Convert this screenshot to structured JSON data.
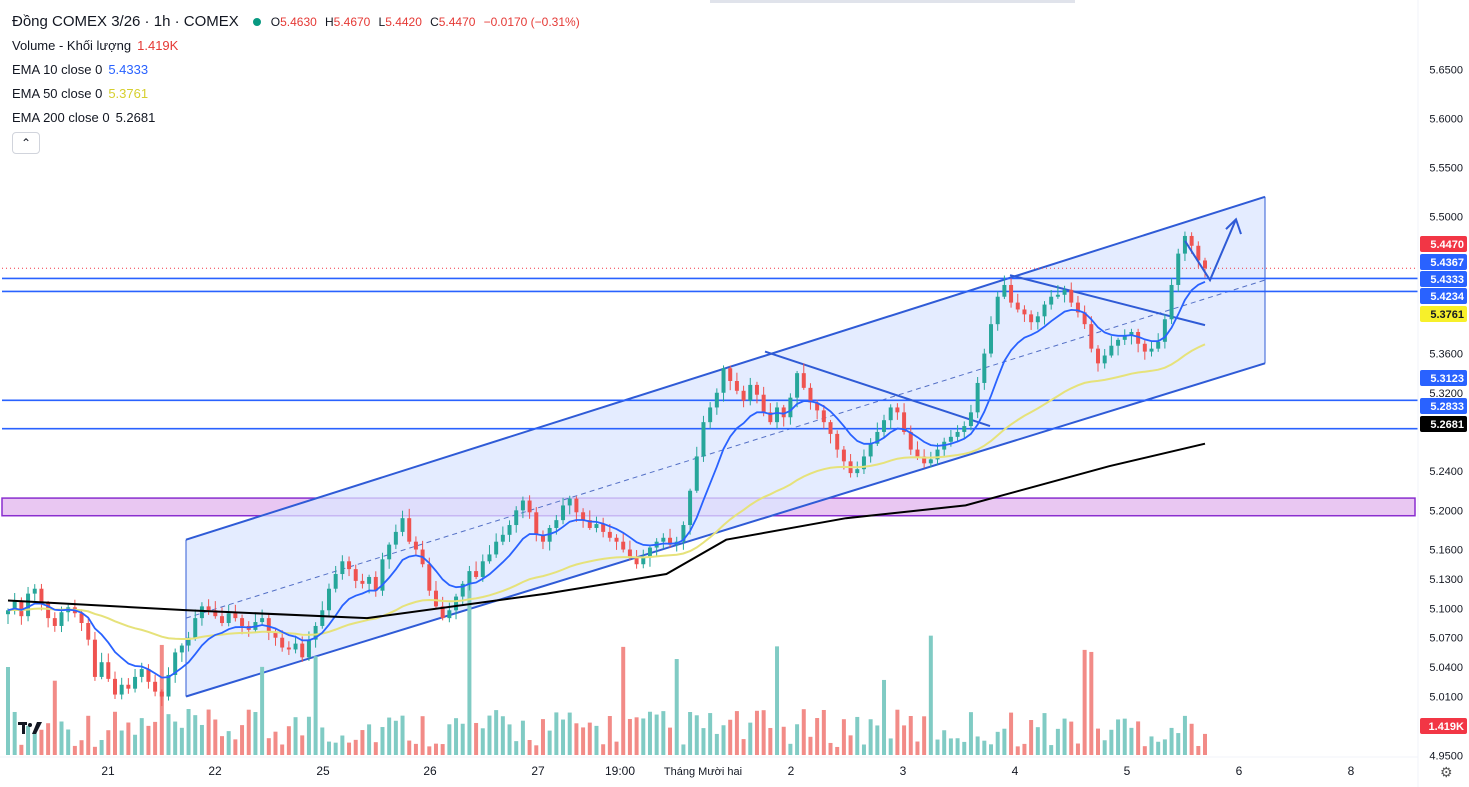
{
  "legend": {
    "title": "Đồng COMEX 3/26 · 1h · COMEX",
    "ohlc": {
      "o": "5.4630",
      "h": "5.4670",
      "l": "5.4420",
      "c": "5.4470",
      "chg": "−0.0170 (−0.31%)"
    },
    "volume_label": "Volume - Khối lượng",
    "volume_value": "1.419K",
    "ema10_label": "EMA 10 close 0",
    "ema10_value": "5.4333",
    "ema50_label": "EMA 50 close 0",
    "ema50_value": "5.3761",
    "ema200_label": "EMA 200 close 0",
    "ema200_value": "5.2681",
    "collapse_glyph": "⌃"
  },
  "colors": {
    "up": "#26a69a",
    "down": "#ef5350",
    "vol_up": "#80cbc4",
    "vol_down": "#f28b87",
    "ema10": "#2962ff",
    "ema50": "#e6e27a",
    "ema200": "#000000",
    "channel_stroke": "#2f5bd6",
    "channel_fill": "#dbe6ff",
    "zone_fill": "#e9c7f2",
    "zone_stroke": "#8a2ecf"
  },
  "chart_data": {
    "type": "candlestick",
    "y_range": [
      4.935,
      5.68
    ],
    "y_ticks": [
      "5.6500",
      "5.6000",
      "5.5500",
      "5.5000",
      "5.3600",
      "5.3200",
      "5.2400",
      "5.2000",
      "5.1600",
      "5.1300",
      "5.1000",
      "5.0700",
      "5.0400",
      "5.0100",
      "4.9500"
    ],
    "x_labels": [
      "21",
      "22",
      "25",
      "26",
      "27",
      "19:00",
      "Tháng Mười hai",
      "2",
      "3",
      "4",
      "5",
      "6",
      "8"
    ],
    "price_badges": [
      {
        "value": "5.4470",
        "bg": "#f23645",
        "fg": "#ffffff"
      },
      {
        "value": "5.4367",
        "bg": "#2962ff",
        "fg": "#ffffff"
      },
      {
        "value": "5.4333",
        "bg": "#2962ff",
        "fg": "#ffffff"
      },
      {
        "value": "5.4234",
        "bg": "#2962ff",
        "fg": "#ffffff"
      },
      {
        "value": "5.3761",
        "bg": "#f7f02a",
        "fg": "#131722"
      },
      {
        "value": "5.3123",
        "bg": "#2962ff",
        "fg": "#ffffff"
      },
      {
        "value": "5.2833",
        "bg": "#2962ff",
        "fg": "#ffffff"
      },
      {
        "value": "5.2681",
        "bg": "#000000",
        "fg": "#ffffff"
      },
      {
        "value": "1.419K",
        "bg": "#f23645",
        "fg": "#ffffff"
      }
    ],
    "horizontal_lines": [
      5.4367,
      5.4234,
      5.3123,
      5.2833
    ],
    "last_price": 5.447,
    "support_zone": [
      5.1945,
      5.2125
    ],
    "channel": {
      "upper": [
        [
          0.0,
          5.17
        ],
        [
          1.0,
          5.52
        ]
      ],
      "lower": [
        [
          0.0,
          5.01
        ],
        [
          1.0,
          5.35
        ]
      ]
    },
    "candles_close": [
      5.098,
      5.108,
      5.092,
      5.115,
      5.12,
      5.105,
      5.09,
      5.082,
      5.096,
      5.101,
      5.095,
      5.085,
      5.068,
      5.03,
      5.045,
      5.028,
      5.012,
      5.022,
      5.018,
      5.03,
      5.038,
      5.025,
      5.015,
      5.01,
      5.032,
      5.055,
      5.062,
      5.07,
      5.09,
      5.102,
      5.098,
      5.092,
      5.085,
      5.095,
      5.09,
      5.082,
      5.078,
      5.086,
      5.09,
      5.075,
      5.07,
      5.06,
      5.058,
      5.064,
      5.05,
      5.068,
      5.082,
      5.098,
      5.12,
      5.135,
      5.148,
      5.14,
      5.128,
      5.125,
      5.132,
      5.118,
      5.15,
      5.165,
      5.178,
      5.192,
      5.168,
      5.16,
      5.145,
      5.118,
      5.102,
      5.09,
      5.098,
      5.112,
      5.125,
      5.138,
      5.132,
      5.148,
      5.155,
      5.168,
      5.175,
      5.185,
      5.2,
      5.21,
      5.198,
      5.175,
      5.168,
      5.182,
      5.19,
      5.205,
      5.212,
      5.198,
      5.19,
      5.182,
      5.186,
      5.178,
      5.172,
      5.168,
      5.16,
      5.152,
      5.145,
      5.152,
      5.162,
      5.168,
      5.172,
      5.165,
      5.168,
      5.185,
      5.22,
      5.255,
      5.29,
      5.305,
      5.32,
      5.345,
      5.332,
      5.322,
      5.312,
      5.328,
      5.318,
      5.3,
      5.29,
      5.305,
      5.295,
      5.315,
      5.34,
      5.325,
      5.31,
      5.302,
      5.29,
      5.278,
      5.262,
      5.25,
      5.238,
      5.242,
      5.255,
      5.268,
      5.28,
      5.292,
      5.305,
      5.3,
      5.28,
      5.262,
      5.255,
      5.248,
      5.252,
      5.262,
      5.27,
      5.275,
      5.28,
      5.286,
      5.3,
      5.33,
      5.36,
      5.39,
      5.418,
      5.43,
      5.412,
      5.405,
      5.4,
      5.392,
      5.398,
      5.41,
      5.418,
      5.42,
      5.425,
      5.412,
      5.402,
      5.39,
      5.365,
      5.35,
      5.358,
      5.368,
      5.374,
      5.378,
      5.382,
      5.37,
      5.362,
      5.365,
      5.372,
      5.395,
      5.43,
      5.462,
      5.48,
      5.47,
      5.455,
      5.447
    ],
    "ema200_anchor": [
      [
        0.0,
        5.108
      ],
      [
        0.15,
        5.098
      ],
      [
        0.3,
        5.09
      ],
      [
        0.45,
        5.115
      ],
      [
        0.55,
        5.135
      ],
      [
        0.6,
        5.17
      ],
      [
        0.7,
        5.192
      ],
      [
        0.8,
        5.205
      ],
      [
        0.86,
        5.225
      ],
      [
        0.92,
        5.245
      ],
      [
        1.0,
        5.268
      ]
    ]
  }
}
